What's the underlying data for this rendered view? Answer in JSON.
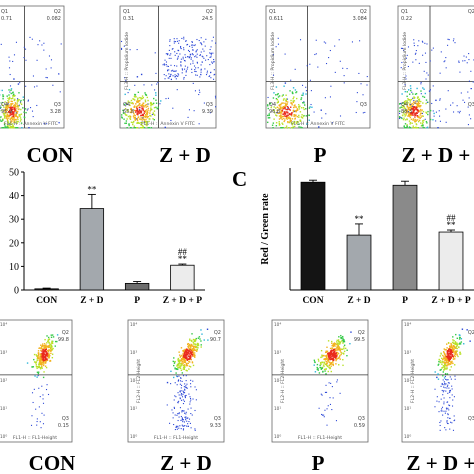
{
  "row1": {
    "quad_labels": [
      "Q1",
      "Q2",
      "Q3",
      "Q4"
    ],
    "panels": [
      {
        "name": "CON",
        "q1": "0.71",
        "q2": "0.082",
        "q3": "3.28",
        "q4": "95.9",
        "yaxis": "",
        "xaxis": "FL1-H :: Annexin V FITC"
      },
      {
        "name": "Z + D",
        "q1": "0.31",
        "q2": "24.5",
        "q3": "9.39",
        "q4": "65.8",
        "yaxis": "FL3-H :: Propidium Iodide",
        "xaxis": "FL1-H :: Annexin V FITC"
      },
      {
        "name": "P",
        "q1": "0.611",
        "q2": "3.084",
        "q3": "",
        "q4": "96.8",
        "yaxis": "FL3-H :: Propidium Iodide",
        "xaxis": "FL1-H :: Annexin V FITC"
      },
      {
        "name": "Z + D + P",
        "q1": "0.22",
        "q2": "",
        "q3": "",
        "q4": "88.3",
        "yaxis": "FL3-H :: Propidium Iodide",
        "xaxis": ""
      }
    ]
  },
  "row3": {
    "quad_labels": [
      "Q2",
      "Q3"
    ],
    "axis_prefix": "10",
    "tick_exponents": [
      "4",
      "3",
      "2",
      "1",
      "0"
    ],
    "panels": [
      {
        "name": "CON",
        "q2": "99.8",
        "q3": "0.15",
        "yaxis": "",
        "xaxis": "FL1-H :: FL1-Height"
      },
      {
        "name": "Z + D",
        "q2": "90.7",
        "q3": "9.33",
        "yaxis": "FL2-H :: FL2-Height",
        "xaxis": "FL1-H :: FL1-Height"
      },
      {
        "name": "P",
        "q2": "99.5",
        "q3": "0.59",
        "yaxis": "FL2-H :: FL2-Height",
        "xaxis": "FL1-H :: FL1-Height"
      },
      {
        "name": "Z + D + P",
        "q2": "",
        "q3": "",
        "yaxis": "FL2-H :: FL2-Height",
        "xaxis": ""
      }
    ]
  },
  "panel_c_letter": "C",
  "chart_data": [
    {
      "type": "bar",
      "categories": [
        "CON",
        "Z + D",
        "P",
        "Z + D + P"
      ],
      "values": [
        0.5,
        34.5,
        2.8,
        10.5
      ],
      "errors": [
        0.3,
        6.0,
        0.8,
        0.5
      ],
      "ylim": [
        0,
        50
      ],
      "yticks": [
        0,
        10,
        20,
        30,
        40,
        50
      ],
      "annotations": [
        {
          "category": "Z + D",
          "lines": [
            "**"
          ]
        },
        {
          "category": "Z + D + P",
          "lines": [
            "##",
            "**"
          ]
        }
      ],
      "colors": [
        "#333333",
        "#a3a8ad",
        "#6d6d6d",
        "#ececec"
      ],
      "title": "",
      "xlabel": "",
      "ylabel": ""
    },
    {
      "type": "bar",
      "categories": [
        "CON",
        "Z + D",
        "P",
        "Z + D + P"
      ],
      "values": [
        5.3,
        2.7,
        5.15,
        2.85
      ],
      "errors": [
        0.1,
        0.55,
        0.2,
        0.1
      ],
      "ylim": [
        0,
        6
      ],
      "yticks": [],
      "annotations": [
        {
          "category": "Z + D",
          "lines": [
            "**"
          ]
        },
        {
          "category": "Z + D + P",
          "lines": [
            "##",
            "**"
          ]
        }
      ],
      "colors": [
        "#141414",
        "#a3a8ad",
        "#8a8a8a",
        "#ececec"
      ],
      "title": "",
      "xlabel": "",
      "ylabel": "Red / Green rate"
    }
  ]
}
